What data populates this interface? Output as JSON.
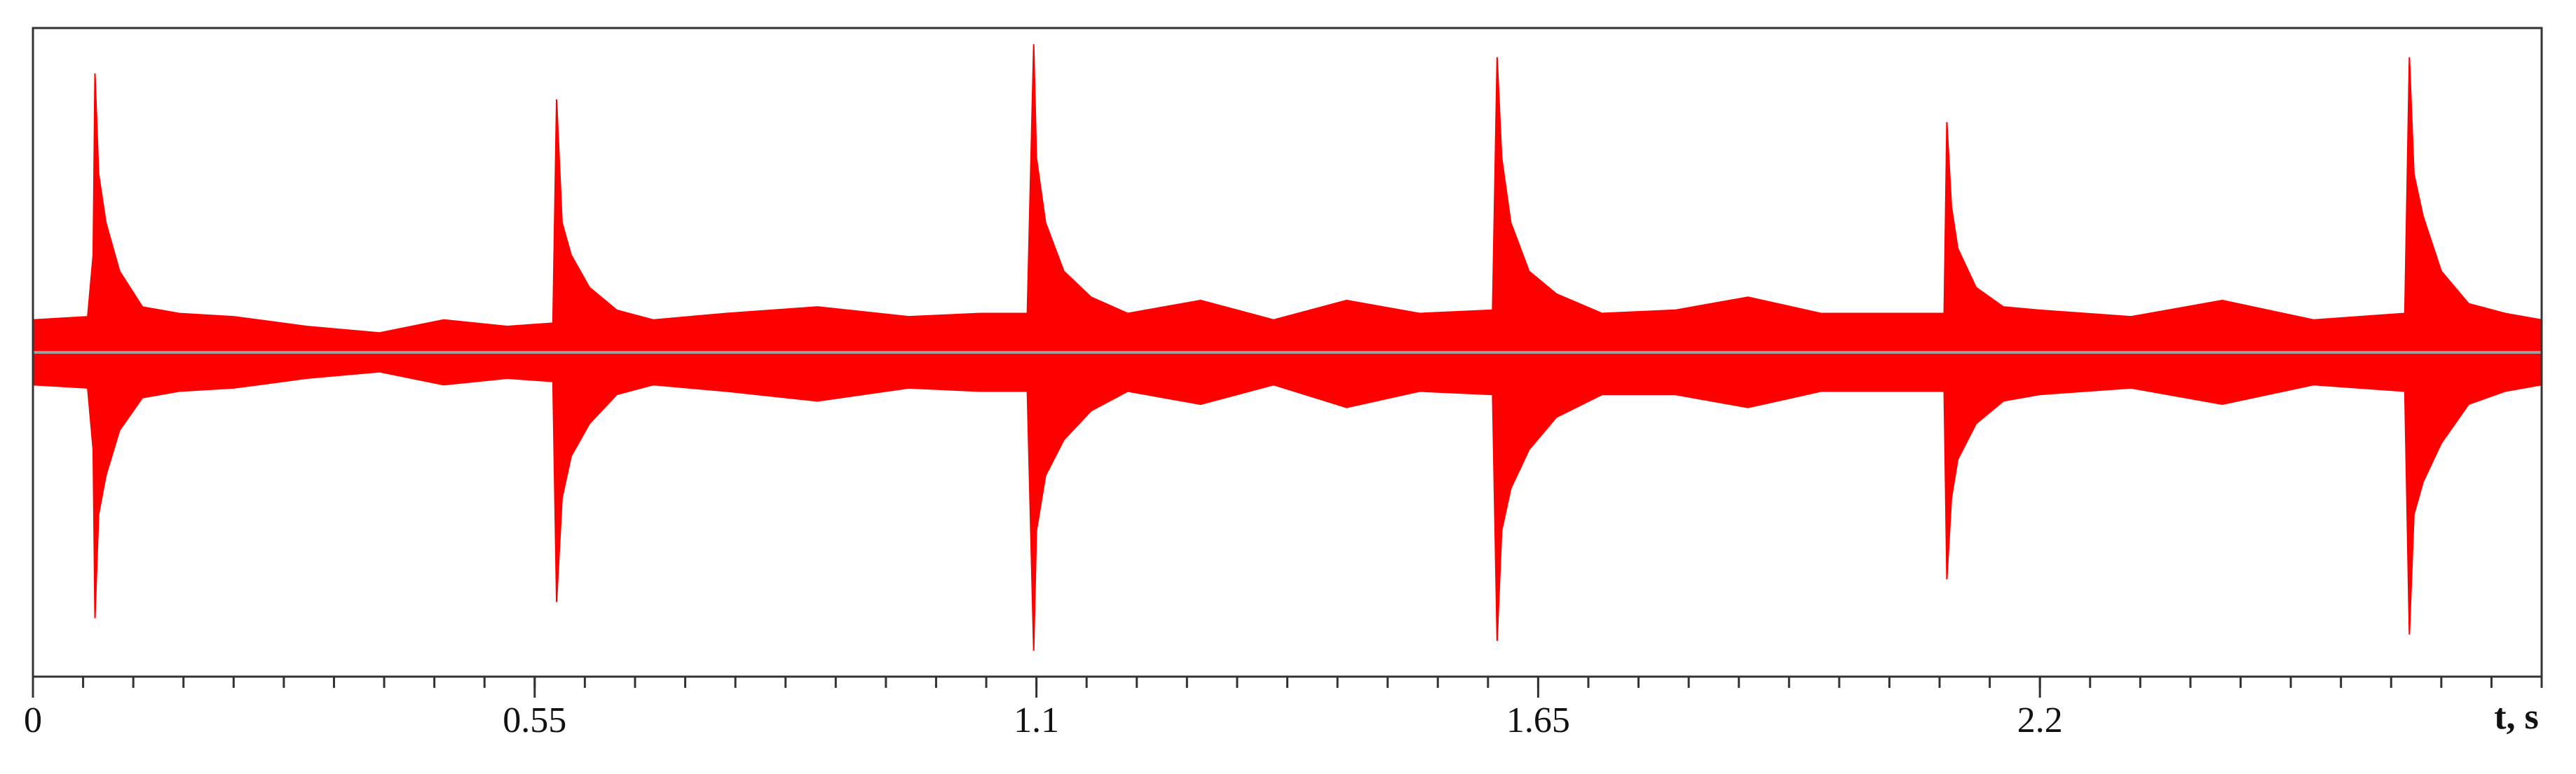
{
  "chart_data": {
    "type": "area",
    "x_label": "t, s",
    "xlim": [
      0,
      2.75
    ],
    "ylim": [
      -1,
      1
    ],
    "xticks": [
      0,
      0.55,
      1.1,
      1.65,
      2.2
    ],
    "xminorticks": [
      0,
      0.055,
      0.11,
      0.165,
      0.22,
      0.275,
      0.33,
      0.385,
      0.44,
      0.495,
      0.55,
      0.605,
      0.66,
      0.715,
      0.77,
      0.825,
      0.88,
      0.935,
      0.99,
      1.045,
      1.1,
      1.155,
      1.21,
      1.265,
      1.32,
      1.375,
      1.43,
      1.485,
      1.54,
      1.595,
      1.65,
      1.705,
      1.76,
      1.815,
      1.87,
      1.925,
      1.98,
      2.035,
      2.09,
      2.145,
      2.2,
      2.255,
      2.31,
      2.365,
      2.42,
      2.475,
      2.53,
      2.585,
      2.64,
      2.695,
      2.75
    ],
    "baseline_color": "#a0a0a0",
    "x": [
      0,
      0.06,
      0.066,
      0.068,
      0.072,
      0.08,
      0.095,
      0.12,
      0.16,
      0.22,
      0.3,
      0.38,
      0.45,
      0.52,
      0.57,
      0.574,
      0.58,
      0.59,
      0.61,
      0.64,
      0.68,
      0.76,
      0.86,
      0.96,
      1.04,
      1.09,
      1.097,
      1.1,
      1.11,
      1.13,
      1.16,
      1.2,
      1.28,
      1.36,
      1.44,
      1.52,
      1.6,
      1.605,
      1.61,
      1.62,
      1.64,
      1.67,
      1.72,
      1.8,
      1.88,
      1.96,
      2.04,
      2.095,
      2.098,
      2.103,
      2.11,
      2.13,
      2.16,
      2.2,
      2.3,
      2.4,
      2.5,
      2.6,
      2.605,
      2.61,
      2.62,
      2.64,
      2.67,
      2.71,
      2.75
    ],
    "series": [
      {
        "color": "#ff0000",
        "values": [
          0.1,
          0.11,
          0.3,
          0.86,
          0.55,
          0.4,
          0.25,
          0.14,
          0.12,
          0.11,
          0.08,
          0.06,
          0.1,
          0.08,
          0.09,
          0.78,
          0.4,
          0.3,
          0.2,
          0.13,
          0.1,
          0.12,
          0.14,
          0.11,
          0.12,
          0.12,
          0.95,
          0.6,
          0.4,
          0.25,
          0.17,
          0.12,
          0.16,
          0.1,
          0.16,
          0.12,
          0.13,
          0.91,
          0.6,
          0.4,
          0.25,
          0.18,
          0.12,
          0.13,
          0.17,
          0.12,
          0.12,
          0.12,
          0.71,
          0.45,
          0.32,
          0.2,
          0.14,
          0.13,
          0.11,
          0.16,
          0.1,
          0.12,
          0.91,
          0.55,
          0.42,
          0.25,
          0.15,
          0.12,
          0.1
        ]
      },
      {
        "color": "#ff0000",
        "values": [
          -0.1,
          -0.11,
          -0.3,
          -0.82,
          -0.5,
          -0.38,
          -0.24,
          -0.14,
          -0.12,
          -0.11,
          -0.08,
          -0.06,
          -0.1,
          -0.08,
          -0.09,
          -0.77,
          -0.45,
          -0.32,
          -0.22,
          -0.13,
          -0.1,
          -0.12,
          -0.15,
          -0.11,
          -0.12,
          -0.12,
          -0.92,
          -0.55,
          -0.38,
          -0.27,
          -0.18,
          -0.12,
          -0.16,
          -0.1,
          -0.17,
          -0.12,
          -0.13,
          -0.89,
          -0.55,
          -0.42,
          -0.3,
          -0.2,
          -0.13,
          -0.13,
          -0.17,
          -0.12,
          -0.12,
          -0.12,
          -0.7,
          -0.45,
          -0.33,
          -0.22,
          -0.15,
          -0.13,
          -0.11,
          -0.16,
          -0.1,
          -0.12,
          -0.87,
          -0.5,
          -0.4,
          -0.28,
          -0.16,
          -0.12,
          -0.1
        ]
      }
    ]
  }
}
